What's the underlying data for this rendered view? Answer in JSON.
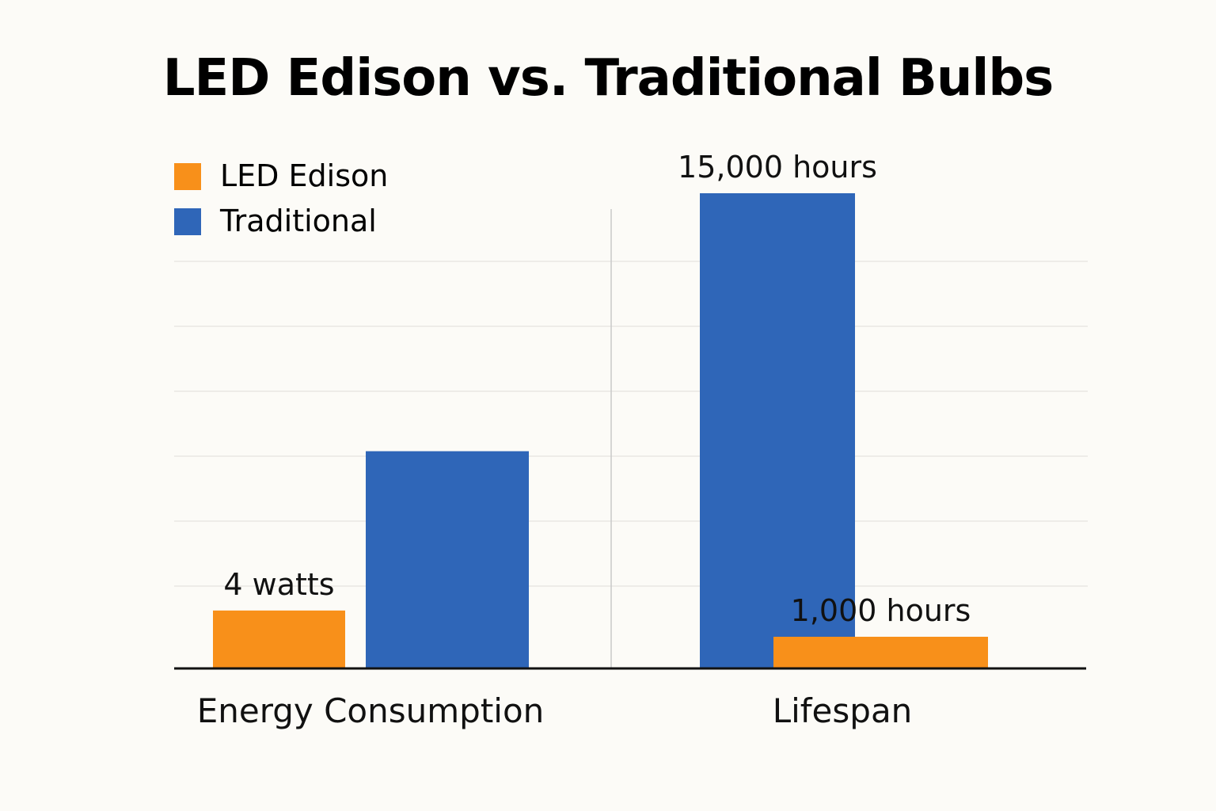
{
  "chart_data": {
    "type": "bar",
    "title": "LED Edison vs. Traditional Bulbs",
    "legend": {
      "placement": "top-left"
    },
    "grid": true,
    "groups": [
      {
        "category": "Energy Consumption",
        "bars": [
          {
            "series": "LED Edison",
            "value": 4,
            "label": "4 watts"
          },
          {
            "series": "Traditional",
            "value": 15,
            "label": ""
          }
        ]
      },
      {
        "category": "Lifespan",
        "bars": [
          {
            "series": "LED Edison",
            "value": 1000,
            "label": "1,000 hours"
          },
          {
            "series": "Traditional",
            "value": 15000,
            "label": "15,000 hours"
          }
        ]
      }
    ],
    "series": [
      {
        "name": "LED Edison",
        "color": "#f8901a"
      },
      {
        "name": "Traditional",
        "color": "#2f66b8"
      }
    ]
  }
}
